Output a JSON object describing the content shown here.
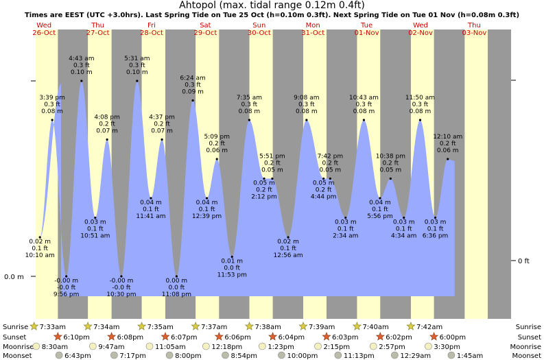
{
  "title": "Ahtopol (max. tidal range 0.12m 0.4ft)",
  "subtitle": "Times are EEST (UTC +3.0hrs). Last Spring Tide on Tue 25 Oct (h=0.10m 0.3ft). Next Spring Tide on Tue 01 Nov (h=0.08m 0.3ft)",
  "colors": {
    "sea": "#99aaff",
    "day": "#ffffcc",
    "night": "#999999",
    "daylabel": "#cc0000"
  },
  "chart_data": {
    "type": "area",
    "ylabel_left": "0.0 m",
    "ylabel_right": "0 ft",
    "days": [
      {
        "dow": "Wed",
        "date": "26-Oct"
      },
      {
        "dow": "Thu",
        "date": "27-Oct"
      },
      {
        "dow": "Fri",
        "date": "28-Oct"
      },
      {
        "dow": "Sat",
        "date": "29-Oct"
      },
      {
        "dow": "Sun",
        "date": "30-Oct"
      },
      {
        "dow": "Mon",
        "date": "31-Oct"
      },
      {
        "dow": "Tue",
        "date": "01-Nov"
      },
      {
        "dow": "Wed",
        "date": "02-Nov"
      },
      {
        "dow": "Thu",
        "date": "03-Nov"
      }
    ],
    "tides": [
      {
        "day": 0,
        "time": "3:39 pm",
        "ft": "0.3 ft",
        "m": 0.08,
        "type": "high"
      },
      {
        "day": 0,
        "time": "10:10 am",
        "ft": "0.1 ft",
        "m": 0.02,
        "type": "low"
      },
      {
        "day": 0,
        "time": "9:56 pm",
        "ft": "-0.0 ft",
        "m": -0.0,
        "type": "low"
      },
      {
        "day": 1,
        "time": "4:43 am",
        "ft": "0.3 ft",
        "m": 0.1,
        "type": "high"
      },
      {
        "day": 1,
        "time": "10:51 am",
        "ft": "0.1 ft",
        "m": 0.03,
        "type": "low"
      },
      {
        "day": 1,
        "time": "4:08 pm",
        "ft": "0.2 ft",
        "m": 0.07,
        "type": "high"
      },
      {
        "day": 1,
        "time": "10:30 pm",
        "ft": "-0.0 ft",
        "m": -0.0,
        "type": "low"
      },
      {
        "day": 2,
        "time": "5:31 am",
        "ft": "0.3 ft",
        "m": 0.1,
        "type": "high"
      },
      {
        "day": 2,
        "time": "11:41 am",
        "ft": "0.1 ft",
        "m": 0.04,
        "type": "low"
      },
      {
        "day": 2,
        "time": "4:37 pm",
        "ft": "0.2 ft",
        "m": 0.07,
        "type": "high"
      },
      {
        "day": 2,
        "time": "11:08 pm",
        "ft": "0.0 ft",
        "m": 0.0,
        "type": "low"
      },
      {
        "day": 3,
        "time": "6:24 am",
        "ft": "0.3 ft",
        "m": 0.09,
        "type": "high"
      },
      {
        "day": 3,
        "time": "12:39 pm",
        "ft": "0.1 ft",
        "m": 0.04,
        "type": "low"
      },
      {
        "day": 3,
        "time": "5:09 pm",
        "ft": "0.2 ft",
        "m": 0.06,
        "type": "high"
      },
      {
        "day": 3,
        "time": "11:53 pm",
        "ft": "0.0 ft",
        "m": 0.01,
        "type": "low"
      },
      {
        "day": 4,
        "time": "7:35 am",
        "ft": "0.3 ft",
        "m": 0.08,
        "type": "high"
      },
      {
        "day": 4,
        "time": "2:12 pm",
        "ft": "0.2 ft",
        "m": 0.05,
        "type": "low"
      },
      {
        "day": 4,
        "time": "5:51 pm",
        "ft": "0.2 ft",
        "m": 0.05,
        "type": "high"
      },
      {
        "day": 5,
        "time": "12:56 am",
        "ft": "0.1 ft",
        "m": 0.02,
        "type": "low"
      },
      {
        "day": 5,
        "time": "9:08 am",
        "ft": "0.3 ft",
        "m": 0.08,
        "type": "high"
      },
      {
        "day": 5,
        "time": "4:44 pm",
        "ft": "0.2 ft",
        "m": 0.05,
        "type": "low"
      },
      {
        "day": 5,
        "time": "7:42 pm",
        "ft": "0.2 ft",
        "m": 0.05,
        "type": "high"
      },
      {
        "day": 6,
        "time": "2:34 am",
        "ft": "0.1 ft",
        "m": 0.03,
        "type": "low"
      },
      {
        "day": 6,
        "time": "10:43 am",
        "ft": "0.3 ft",
        "m": 0.08,
        "type": "high"
      },
      {
        "day": 6,
        "time": "5:56 pm",
        "ft": "0.1 ft",
        "m": 0.04,
        "type": "low"
      },
      {
        "day": 6,
        "time": "10:38 pm",
        "ft": "0.2 ft",
        "m": 0.05,
        "type": "high"
      },
      {
        "day": 7,
        "time": "4:34 am",
        "ft": "0.1 ft",
        "m": 0.03,
        "type": "low"
      },
      {
        "day": 7,
        "time": "11:50 am",
        "ft": "0.3 ft",
        "m": 0.08,
        "type": "high"
      },
      {
        "day": 7,
        "time": "6:36 pm",
        "ft": "0.1 ft",
        "m": 0.03,
        "type": "low"
      },
      {
        "day": 8,
        "time": "12:10 am",
        "ft": "0.2 ft",
        "m": 0.06,
        "type": "high"
      }
    ],
    "sunrise": [
      "7:33am",
      "7:34am",
      "7:35am",
      "7:37am",
      "7:38am",
      "7:39am",
      "7:40am",
      "7:42am"
    ],
    "sunset": [
      "6:10pm",
      "6:08pm",
      "6:07pm",
      "6:06pm",
      "6:04pm",
      "6:03pm",
      "6:02pm",
      "6:00pm"
    ],
    "moonrise": [
      "8:30am",
      "9:47am",
      "11:05am",
      "12:18pm",
      "1:23pm",
      "2:15pm",
      "2:57pm",
      "3:30pm"
    ],
    "moonset": [
      "6:43pm",
      "7:17pm",
      "8:00pm",
      "8:54pm",
      "10:00pm",
      "11:13pm",
      "12:29am",
      "1:45am"
    ],
    "row_labels": {
      "sunrise": "Sunrise",
      "sunset": "Sunset",
      "moonrise": "Moonrise",
      "moonset": "Moonset"
    }
  }
}
